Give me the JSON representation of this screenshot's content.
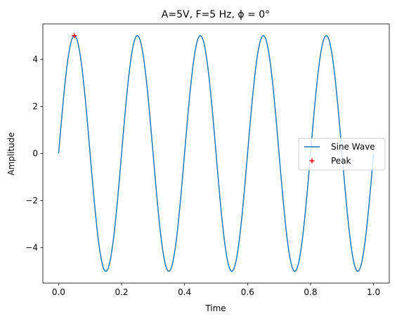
{
  "chart_data": {
    "type": "line",
    "title": "A=5V, F=5 Hz, ϕ = 0°",
    "xlabel": "Time",
    "ylabel": "Amplitude",
    "xlim": [
      -0.05,
      1.05
    ],
    "ylim": [
      -5.5,
      5.5
    ],
    "x_ticks": [
      0.0,
      0.2,
      0.4,
      0.6,
      0.8,
      1.0
    ],
    "x_tick_labels": [
      "0.0",
      "0.2",
      "0.4",
      "0.6",
      "0.8",
      "1.0"
    ],
    "y_ticks": [
      -4,
      -2,
      0,
      2,
      4
    ],
    "y_tick_labels": [
      "−4",
      "−2",
      "0",
      "2",
      "4"
    ],
    "grid": false,
    "legend_position": "center-right",
    "series": [
      {
        "name": "Sine Wave",
        "kind": "line",
        "color": "#1f77b4",
        "function": "5*sin(2*pi*5*t)",
        "x_range": [
          0,
          1
        ],
        "amplitude": 5,
        "frequency": 5,
        "phase": 0
      },
      {
        "name": "Peak",
        "kind": "marker",
        "marker": "+",
        "color": "#ff0000",
        "points": [
          {
            "x": 0.05,
            "y": 5
          }
        ]
      }
    ]
  }
}
